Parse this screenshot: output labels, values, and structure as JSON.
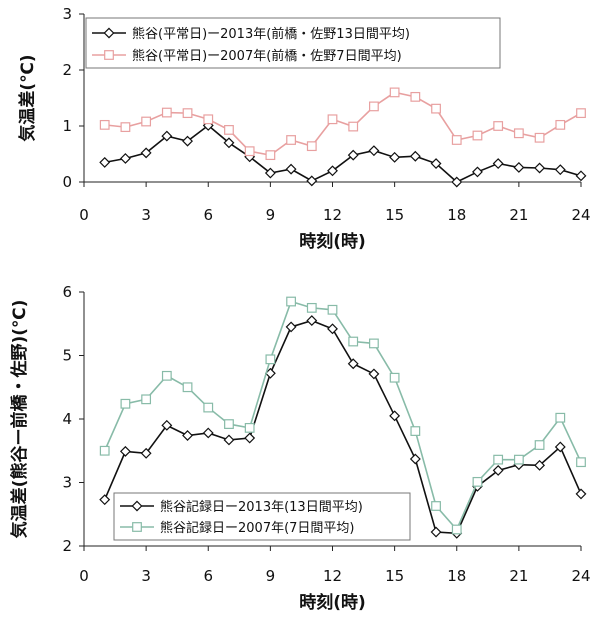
{
  "chart_data": [
    {
      "type": "line",
      "xlabel": "時刻(時)",
      "ylabel": "気温差(℃)",
      "xlim": [
        0,
        24
      ],
      "ylim": [
        0,
        3
      ],
      "xticks": [
        0,
        3,
        6,
        9,
        12,
        15,
        18,
        21,
        24
      ],
      "yticks": [
        0,
        1,
        2,
        3
      ],
      "grid": false,
      "legend_position": "top",
      "x": [
        1,
        2,
        3,
        4,
        5,
        6,
        7,
        8,
        9,
        10,
        11,
        12,
        13,
        14,
        15,
        16,
        17,
        18,
        19,
        20,
        21,
        22,
        23,
        24
      ],
      "series": [
        {
          "name": "熊谷(平常日)ー2013年(前橋・佐野13日間平均)",
          "marker": "diamond",
          "color": "#111111",
          "values": [
            0.35,
            0.42,
            0.52,
            0.82,
            0.73,
            1.01,
            0.7,
            0.45,
            0.16,
            0.23,
            0.02,
            0.2,
            0.48,
            0.56,
            0.44,
            0.46,
            0.33,
            0.0,
            0.18,
            0.33,
            0.26,
            0.25,
            0.22,
            0.11
          ]
        },
        {
          "name": "熊谷(平常日)ー2007年(前橋・佐野7日間平均)",
          "marker": "square",
          "color": "#e8a0a0",
          "values": [
            1.02,
            0.98,
            1.08,
            1.24,
            1.23,
            1.12,
            0.93,
            0.55,
            0.48,
            0.75,
            0.64,
            1.12,
            0.99,
            1.35,
            1.6,
            1.52,
            1.31,
            0.75,
            0.83,
            1.0,
            0.87,
            0.79,
            1.02,
            1.23
          ]
        }
      ]
    },
    {
      "type": "line",
      "xlabel": "時刻(時)",
      "ylabel": "気温差(熊谷ー前橋・佐野)(℃)",
      "xlim": [
        0,
        24
      ],
      "ylim": [
        2,
        6
      ],
      "xticks": [
        0,
        3,
        6,
        9,
        12,
        15,
        18,
        21,
        24
      ],
      "yticks": [
        2,
        3,
        4,
        5,
        6
      ],
      "grid": false,
      "legend_position": "bottom-center",
      "x": [
        1,
        2,
        3,
        4,
        5,
        6,
        7,
        8,
        9,
        10,
        11,
        12,
        13,
        14,
        15,
        16,
        17,
        18,
        19,
        20,
        21,
        22,
        23,
        24
      ],
      "series": [
        {
          "name": "熊谷記録日ー2013年(13日間平均)",
          "marker": "diamond",
          "color": "#111111",
          "values": [
            2.73,
            3.49,
            3.46,
            3.9,
            3.74,
            3.78,
            3.67,
            3.7,
            4.72,
            5.45,
            5.55,
            5.42,
            4.87,
            4.71,
            4.05,
            3.37,
            2.22,
            2.2,
            2.94,
            3.19,
            3.28,
            3.27,
            3.56,
            2.82
          ]
        },
        {
          "name": "熊谷記録日ー2007年(7日間平均)",
          "marker": "square",
          "color": "#88bba8",
          "values": [
            3.5,
            4.24,
            4.31,
            4.68,
            4.5,
            4.18,
            3.92,
            3.86,
            4.94,
            5.85,
            5.75,
            5.72,
            5.22,
            5.19,
            4.65,
            3.81,
            2.63,
            2.26,
            3.01,
            3.36,
            3.36,
            3.59,
            4.02,
            3.32
          ]
        }
      ]
    }
  ]
}
